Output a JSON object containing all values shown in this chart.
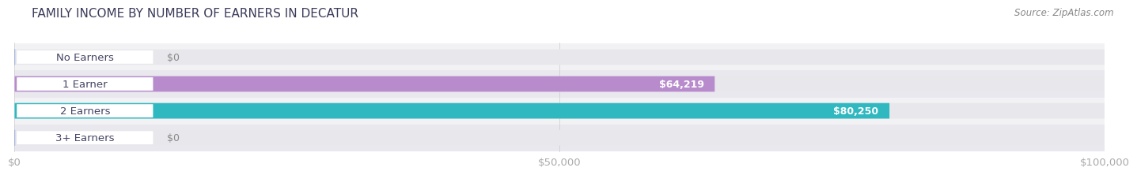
{
  "title": "FAMILY INCOME BY NUMBER OF EARNERS IN DECATUR",
  "source": "Source: ZipAtlas.com",
  "categories": [
    "No Earners",
    "1 Earner",
    "2 Earners",
    "3+ Earners"
  ],
  "values": [
    0,
    64219,
    80250,
    0
  ],
  "bar_colors": [
    "#a8b8e0",
    "#b88ccc",
    "#30b8c0",
    "#a8b4e0"
  ],
  "label_colors": [
    "#888888",
    "#ffffff",
    "#ffffff",
    "#888888"
  ],
  "value_labels": [
    "$0",
    "$64,219",
    "$80,250",
    "$0"
  ],
  "track_color": "#e8e8ec",
  "xlim": [
    0,
    100000
  ],
  "xtick_values": [
    0,
    50000,
    100000
  ],
  "xtick_labels": [
    "$0",
    "$50,000",
    "$100,000"
  ],
  "bar_height": 0.58,
  "row_bg_colors": [
    "#f2f2f4",
    "#e8e8ee",
    "#f2f2f4",
    "#e8e8ee"
  ],
  "title_fontsize": 11,
  "label_fontsize": 9.5,
  "value_fontsize": 9,
  "source_fontsize": 8.5,
  "title_color": "#3a3a5a",
  "source_color": "#888888",
  "category_color": "#444466"
}
